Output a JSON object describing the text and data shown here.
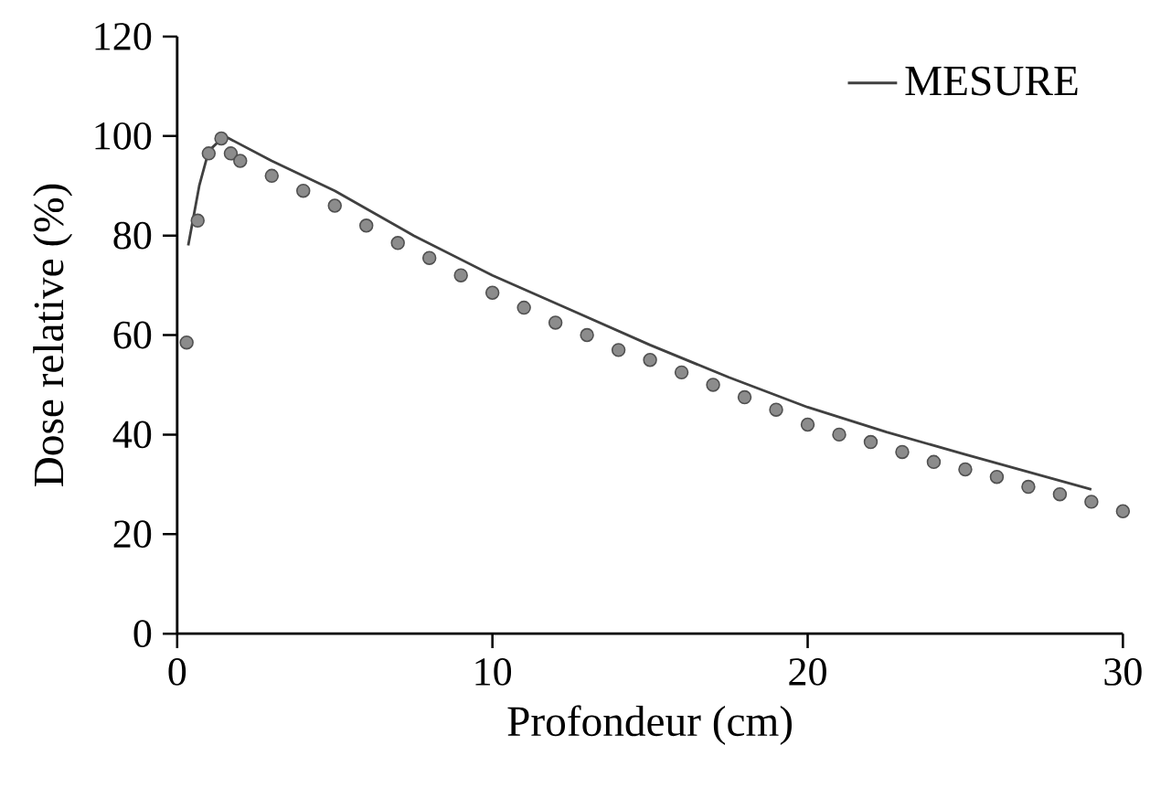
{
  "chart_data": {
    "type": "line",
    "xlabel": "Profondeur  (cm)",
    "ylabel": "Dose relative (%)",
    "xlim": [
      0,
      30
    ],
    "xticks": [
      0,
      10,
      20,
      30
    ],
    "ylim": [
      0,
      120
    ],
    "yticks": [
      0,
      20,
      40,
      60,
      80,
      100,
      120
    ],
    "legend": "top right",
    "grid": false,
    "series": [
      {
        "name": "MESURE",
        "color": "#404040",
        "marker": "none",
        "line_style": "solid",
        "x": [
          0.35,
          0.7,
          1.0,
          1.5,
          3,
          5,
          7.5,
          10,
          12.5,
          15,
          17.5,
          20,
          22.5,
          25,
          27,
          29
        ],
        "values": [
          78,
          90,
          97,
          100,
          95,
          89,
          80,
          72,
          65,
          58,
          51.5,
          45.5,
          40.5,
          36,
          32.5,
          29
        ]
      },
      {
        "type": "scatter",
        "color": "#8c8c8c",
        "marker": "circle",
        "x": [
          0.3,
          0.65,
          1,
          1.4,
          1.7,
          2,
          3,
          4,
          5,
          6,
          7,
          8,
          9,
          10,
          11,
          12,
          13,
          14,
          15,
          16,
          17,
          18,
          19,
          20,
          21,
          22,
          23,
          24,
          25,
          26,
          27,
          28,
          29,
          30
        ],
        "values": [
          58.5,
          83,
          96.5,
          99.5,
          96.5,
          95,
          92,
          89,
          86,
          82,
          78.5,
          75.5,
          72,
          68.5,
          65.5,
          62.5,
          60,
          57,
          55,
          52.5,
          50,
          47.5,
          45,
          42,
          40,
          38.5,
          36.5,
          34.5,
          33,
          31.5,
          29.5,
          28,
          26.5,
          24.6
        ]
      }
    ]
  }
}
